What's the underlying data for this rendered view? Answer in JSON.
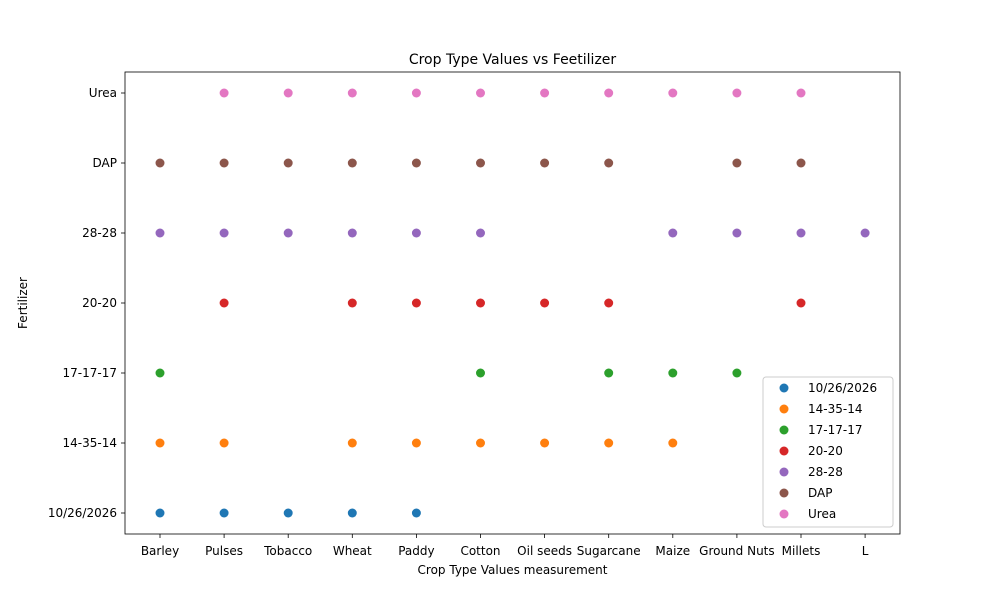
{
  "chart_data": {
    "type": "scatter",
    "title": "Crop Type Values vs Feetilizer",
    "xlabel": "Crop Type Values measurement",
    "ylabel": "Fertilizer",
    "categories": [
      "Barley",
      "Pulses",
      "Tobacco",
      "Wheat",
      "Paddy",
      "Cotton",
      "Oil seeds",
      "Sugarcane",
      "Maize",
      "Ground Nuts",
      "Millets",
      "L"
    ],
    "y_categories": [
      "10/26/2026",
      "14-35-14",
      "17-17-17",
      "20-20",
      "28-28",
      "DAP",
      "Urea"
    ],
    "grid": false,
    "legend_position": "bottom-right",
    "series": [
      {
        "name": "10/26/2026",
        "color": "#1f77b4",
        "x": [
          "Barley",
          "Pulses",
          "Tobacco",
          "Wheat",
          "Paddy"
        ],
        "y": [
          "10/26/2026",
          "10/26/2026",
          "10/26/2026",
          "10/26/2026",
          "10/26/2026"
        ]
      },
      {
        "name": "14-35-14",
        "color": "#ff7f0e",
        "x": [
          "Barley",
          "Pulses",
          "Wheat",
          "Paddy",
          "Cotton",
          "Oil seeds",
          "Sugarcane",
          "Maize"
        ],
        "y": [
          "14-35-14",
          "14-35-14",
          "14-35-14",
          "14-35-14",
          "14-35-14",
          "14-35-14",
          "14-35-14",
          "14-35-14"
        ]
      },
      {
        "name": "17-17-17",
        "color": "#2ca02c",
        "x": [
          "Barley",
          "Cotton",
          "Sugarcane",
          "Maize",
          "Ground Nuts"
        ],
        "y": [
          "17-17-17",
          "17-17-17",
          "17-17-17",
          "17-17-17",
          "17-17-17"
        ]
      },
      {
        "name": "20-20",
        "color": "#d62728",
        "x": [
          "Pulses",
          "Wheat",
          "Paddy",
          "Cotton",
          "Oil seeds",
          "Sugarcane",
          "Millets"
        ],
        "y": [
          "20-20",
          "20-20",
          "20-20",
          "20-20",
          "20-20",
          "20-20",
          "20-20"
        ]
      },
      {
        "name": "28-28",
        "color": "#9467bd",
        "x": [
          "Barley",
          "Pulses",
          "Tobacco",
          "Wheat",
          "Paddy",
          "Cotton",
          "Maize",
          "Ground Nuts",
          "Millets",
          "L"
        ],
        "y": [
          "28-28",
          "28-28",
          "28-28",
          "28-28",
          "28-28",
          "28-28",
          "28-28",
          "28-28",
          "28-28",
          "28-28"
        ]
      },
      {
        "name": "DAP",
        "color": "#8c564b",
        "x": [
          "Barley",
          "Pulses",
          "Tobacco",
          "Wheat",
          "Paddy",
          "Cotton",
          "Oil seeds",
          "Sugarcane",
          "Ground Nuts",
          "Millets"
        ],
        "y": [
          "DAP",
          "DAP",
          "DAP",
          "DAP",
          "DAP",
          "DAP",
          "DAP",
          "DAP",
          "DAP",
          "DAP"
        ]
      },
      {
        "name": "Urea",
        "color": "#e377c2",
        "x": [
          "Pulses",
          "Tobacco",
          "Wheat",
          "Paddy",
          "Cotton",
          "Oil seeds",
          "Sugarcane",
          "Maize",
          "Ground Nuts",
          "Millets"
        ],
        "y": [
          "Urea",
          "Urea",
          "Urea",
          "Urea",
          "Urea",
          "Urea",
          "Urea",
          "Urea",
          "Urea",
          "Urea"
        ]
      }
    ]
  }
}
